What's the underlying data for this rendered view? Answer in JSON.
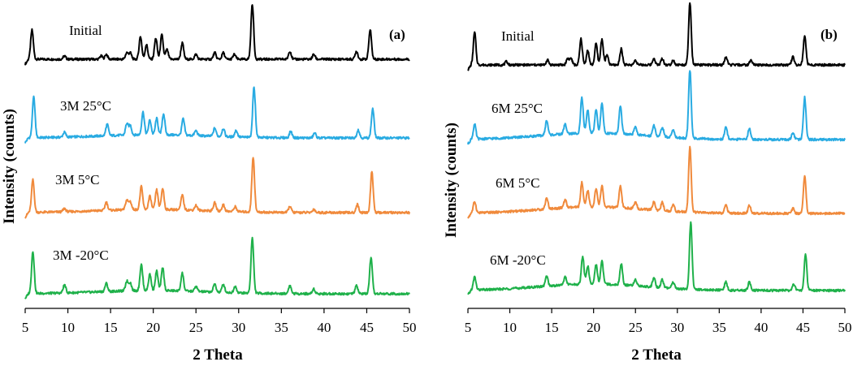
{
  "chart_data": [
    {
      "type": "line",
      "panel": "(a)",
      "xlabel": "2 Theta",
      "ylabel": "Intensity (counts)",
      "xlim": [
        5,
        50
      ],
      "x_ticks": [
        5,
        10,
        15,
        20,
        25,
        30,
        35,
        40,
        45,
        50
      ],
      "tick_labels": [
        "5",
        "10",
        "15",
        "20",
        "25",
        "30",
        "35",
        "40",
        "45",
        "50"
      ],
      "grid": false,
      "series": [
        {
          "name": "Initial",
          "color": "#000000",
          "peaks": [
            [
              5.8,
              18
            ],
            [
              9.6,
              2
            ],
            [
              13.9,
              2
            ],
            [
              14.5,
              3
            ],
            [
              16.9,
              4
            ],
            [
              17.3,
              4
            ],
            [
              18.5,
              14
            ],
            [
              19.2,
              9
            ],
            [
              20.3,
              13
            ],
            [
              21.0,
              15
            ],
            [
              21.6,
              6
            ],
            [
              23.4,
              10
            ],
            [
              25.0,
              3
            ],
            [
              27.2,
              4
            ],
            [
              28.2,
              4
            ],
            [
              29.5,
              3
            ],
            [
              31.6,
              34
            ],
            [
              36.0,
              5
            ],
            [
              38.8,
              3
            ],
            [
              43.8,
              5
            ],
            [
              45.4,
              18
            ]
          ]
        },
        {
          "name": "3M 25°C",
          "color": "#29abe2",
          "peaks": [
            [
              6.0,
              25
            ],
            [
              9.6,
              3
            ],
            [
              14.6,
              7
            ],
            [
              16.9,
              7
            ],
            [
              17.3,
              6
            ],
            [
              18.8,
              14
            ],
            [
              19.6,
              9
            ],
            [
              20.4,
              10
            ],
            [
              21.2,
              13
            ],
            [
              23.5,
              10
            ],
            [
              25.0,
              3
            ],
            [
              27.2,
              5
            ],
            [
              28.2,
              5
            ],
            [
              29.7,
              4
            ],
            [
              31.8,
              31
            ],
            [
              36.1,
              4
            ],
            [
              38.9,
              3
            ],
            [
              44.0,
              5
            ],
            [
              45.7,
              18
            ]
          ]
        },
        {
          "name": "3M 5°C",
          "color": "#f08a3c",
          "peaks": [
            [
              5.9,
              20
            ],
            [
              9.6,
              2
            ],
            [
              14.5,
              5
            ],
            [
              16.9,
              6
            ],
            [
              17.3,
              5
            ],
            [
              18.6,
              14
            ],
            [
              19.6,
              8
            ],
            [
              20.4,
              12
            ],
            [
              21.1,
              13
            ],
            [
              23.4,
              9
            ],
            [
              25.0,
              3
            ],
            [
              27.2,
              5
            ],
            [
              28.2,
              4
            ],
            [
              29.6,
              3
            ],
            [
              31.7,
              34
            ],
            [
              36.0,
              4
            ],
            [
              38.8,
              2
            ],
            [
              43.9,
              5
            ],
            [
              45.6,
              25
            ]
          ]
        },
        {
          "name": "3M -20°C",
          "color": "#1fb14a",
          "peaks": [
            [
              5.9,
              26
            ],
            [
              9.6,
              5
            ],
            [
              14.5,
              5
            ],
            [
              16.9,
              6
            ],
            [
              17.3,
              5
            ],
            [
              18.6,
              16
            ],
            [
              19.6,
              10
            ],
            [
              20.4,
              12
            ],
            [
              21.1,
              14
            ],
            [
              23.4,
              11
            ],
            [
              25.0,
              3
            ],
            [
              27.2,
              5
            ],
            [
              28.2,
              5
            ],
            [
              29.6,
              4
            ],
            [
              31.6,
              34
            ],
            [
              36.0,
              5
            ],
            [
              38.8,
              3
            ],
            [
              43.8,
              5
            ],
            [
              45.5,
              22
            ]
          ]
        }
      ],
      "annotations": [
        "Initial",
        "3M 25°C",
        "3M 5°C",
        "3M -20°C"
      ]
    },
    {
      "type": "line",
      "panel": "(b)",
      "xlabel": "2 Theta",
      "ylabel": "Intensity (counts)",
      "xlim": [
        5,
        50
      ],
      "x_ticks": [
        5,
        10,
        15,
        20,
        25,
        30,
        35,
        40,
        45,
        50
      ],
      "tick_labels": [
        "5",
        "10",
        "15",
        "20",
        "25",
        "30",
        "35",
        "40",
        "45",
        "50"
      ],
      "grid": false,
      "series": [
        {
          "name": "Initial",
          "color": "#000000",
          "peaks": [
            [
              5.8,
              20
            ],
            [
              9.6,
              2
            ],
            [
              14.5,
              3
            ],
            [
              16.9,
              4
            ],
            [
              17.3,
              4
            ],
            [
              18.5,
              16
            ],
            [
              19.3,
              9
            ],
            [
              20.3,
              13
            ],
            [
              21.0,
              16
            ],
            [
              21.6,
              6
            ],
            [
              23.3,
              10
            ],
            [
              25.0,
              3
            ],
            [
              27.2,
              4
            ],
            [
              28.2,
              4
            ],
            [
              29.5,
              3
            ],
            [
              31.5,
              38
            ],
            [
              35.8,
              5
            ],
            [
              38.8,
              3
            ],
            [
              43.8,
              5
            ],
            [
              45.2,
              18
            ]
          ]
        },
        {
          "name": "6M 25°C",
          "color": "#29abe2",
          "peaks": [
            [
              5.8,
              9
            ],
            [
              14.4,
              9
            ],
            [
              16.6,
              6
            ],
            [
              18.6,
              22
            ],
            [
              19.3,
              14
            ],
            [
              20.3,
              14
            ],
            [
              21.0,
              18
            ],
            [
              23.2,
              17
            ],
            [
              25.0,
              5
            ],
            [
              27.2,
              7
            ],
            [
              28.2,
              6
            ],
            [
              29.5,
              5
            ],
            [
              31.5,
              42
            ],
            [
              35.8,
              8
            ],
            [
              38.6,
              7
            ],
            [
              43.8,
              4
            ],
            [
              45.2,
              26
            ]
          ]
        },
        {
          "name": "6M 5°C",
          "color": "#f08a3c",
          "peaks": [
            [
              5.8,
              7
            ],
            [
              14.4,
              7
            ],
            [
              16.6,
              5
            ],
            [
              18.6,
              15
            ],
            [
              19.3,
              10
            ],
            [
              20.3,
              11
            ],
            [
              21.0,
              13
            ],
            [
              23.2,
              13
            ],
            [
              25.0,
              4
            ],
            [
              27.2,
              5
            ],
            [
              28.2,
              5
            ],
            [
              29.5,
              4
            ],
            [
              31.5,
              40
            ],
            [
              35.8,
              5
            ],
            [
              38.6,
              5
            ],
            [
              43.8,
              3
            ],
            [
              45.2,
              23
            ]
          ]
        },
        {
          "name": "6M -20°C",
          "color": "#1fb14a",
          "peaks": [
            [
              5.8,
              8
            ],
            [
              14.4,
              6
            ],
            [
              16.6,
              5
            ],
            [
              18.7,
              17
            ],
            [
              19.3,
              11
            ],
            [
              20.3,
              12
            ],
            [
              21.0,
              14
            ],
            [
              23.3,
              13
            ],
            [
              25.0,
              4
            ],
            [
              27.2,
              6
            ],
            [
              28.2,
              5
            ],
            [
              29.5,
              4
            ],
            [
              31.6,
              41
            ],
            [
              35.8,
              5
            ],
            [
              38.6,
              5
            ],
            [
              43.9,
              4
            ],
            [
              45.3,
              22
            ]
          ]
        }
      ],
      "annotations": [
        "Initial",
        "6M 25°C",
        "6M 5°C",
        "6M -20°C"
      ]
    }
  ]
}
